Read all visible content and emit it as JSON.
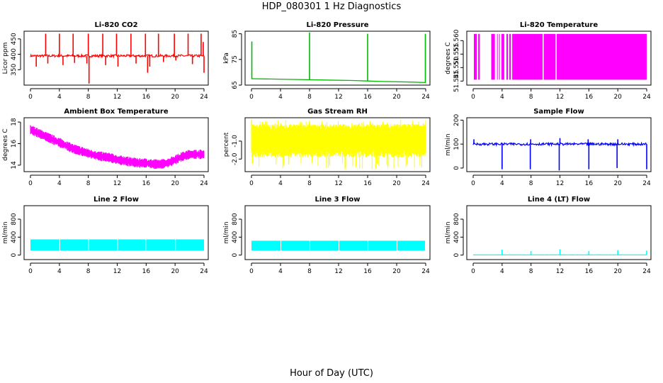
{
  "page": {
    "title": "HDP_080301  1 Hz Diagnostics",
    "xlabel": "Hour of Day (UTC)"
  },
  "chart_data": [
    {
      "type": "line",
      "title": "Li-820 CO2",
      "ylabel": "Licor ppm",
      "color": "#ff0000",
      "xlim": [
        0,
        24
      ],
      "xticks": [
        0,
        4,
        8,
        12,
        16,
        20,
        24
      ],
      "ylim": [
        300,
        475
      ],
      "yticks": [
        350,
        400,
        450
      ],
      "baseline": 395,
      "noise": 4,
      "spikes": [
        {
          "x": 0.8,
          "v": 360
        },
        {
          "x": 2.1,
          "v": 467
        },
        {
          "x": 2.4,
          "v": 370
        },
        {
          "x": 4.0,
          "v": 467
        },
        {
          "x": 4.5,
          "v": 365
        },
        {
          "x": 5.9,
          "v": 467
        },
        {
          "x": 6.1,
          "v": 372
        },
        {
          "x": 7.8,
          "v": 370
        },
        {
          "x": 8.0,
          "v": 467
        },
        {
          "x": 8.1,
          "v": 305
        },
        {
          "x": 10.0,
          "v": 467
        },
        {
          "x": 10.4,
          "v": 365
        },
        {
          "x": 11.9,
          "v": 467
        },
        {
          "x": 12.1,
          "v": 360
        },
        {
          "x": 13.9,
          "v": 467
        },
        {
          "x": 14.6,
          "v": 370
        },
        {
          "x": 15.9,
          "v": 467
        },
        {
          "x": 16.2,
          "v": 340
        },
        {
          "x": 16.5,
          "v": 360
        },
        {
          "x": 17.7,
          "v": 467
        },
        {
          "x": 18.4,
          "v": 375
        },
        {
          "x": 19.9,
          "v": 467
        },
        {
          "x": 20.1,
          "v": 380
        },
        {
          "x": 21.8,
          "v": 467
        },
        {
          "x": 22.4,
          "v": 368
        },
        {
          "x": 23.6,
          "v": 467
        },
        {
          "x": 23.9,
          "v": 440
        },
        {
          "x": 24.0,
          "v": 340
        }
      ]
    },
    {
      "type": "line",
      "title": "Li-820 Pressure",
      "ylabel": "kPa",
      "color": "#00bb00",
      "xlim": [
        0,
        24
      ],
      "xticks": [
        0,
        4,
        8,
        12,
        16,
        20,
        24
      ],
      "ylim": [
        65,
        86
      ],
      "yticks": [
        65,
        75,
        85
      ],
      "series": [
        {
          "x": [
            0,
            2,
            6,
            10,
            14,
            18,
            22,
            24
          ],
          "y": [
            67.5,
            67.4,
            67.2,
            67.0,
            66.8,
            66.4,
            66.2,
            66.0
          ]
        }
      ],
      "spikes": [
        {
          "x": 0.05,
          "v": 82
        },
        {
          "x": 8.0,
          "v": 85.5
        },
        {
          "x": 16.0,
          "v": 85
        },
        {
          "x": 23.95,
          "v": 85
        }
      ]
    },
    {
      "type": "area",
      "title": "Li-820 Temperature",
      "ylabel": "degrees C",
      "color": "#ff00ff",
      "xlim": [
        0,
        24
      ],
      "xticks": [
        0,
        4,
        8,
        12,
        16,
        20,
        24
      ],
      "ylim": [
        51.5435,
        51.5635
      ],
      "yticks": [
        51.545,
        51.55,
        51.555,
        51.56
      ],
      "ytick_labels": [
        "51.545",
        "51.550",
        "51.555",
        "51.560"
      ],
      "low": 51.5455,
      "high": 51.5625,
      "filled_ranges": [
        [
          0.1,
          0.5
        ],
        [
          0.7,
          0.9
        ],
        [
          2.5,
          3.0
        ],
        [
          3.3,
          3.4
        ],
        [
          3.6,
          3.7
        ],
        [
          3.9,
          4.3
        ],
        [
          4.6,
          4.8
        ],
        [
          5.0,
          5.2
        ],
        [
          5.4,
          9.6
        ],
        [
          9.75,
          11.4
        ],
        [
          11.55,
          24.0
        ]
      ]
    },
    {
      "type": "line",
      "title": "Ambient Box Temperature",
      "ylabel": "degrees C",
      "color": "#ff00ff",
      "xlim": [
        0,
        24
      ],
      "xticks": [
        0,
        4,
        8,
        12,
        16,
        20,
        24
      ],
      "ylim": [
        13.4,
        18.4
      ],
      "yticks": [
        14,
        16,
        18
      ],
      "series": [
        {
          "x": [
            0,
            1,
            2,
            3,
            4,
            5,
            6,
            7,
            8,
            9,
            10,
            11,
            12,
            13,
            14,
            15,
            16,
            17,
            18,
            19,
            20,
            21,
            22,
            23,
            24
          ],
          "y": [
            17.3,
            17.0,
            16.7,
            16.4,
            16.1,
            15.8,
            15.5,
            15.3,
            15.1,
            14.9,
            14.8,
            14.7,
            14.5,
            14.4,
            14.3,
            14.2,
            14.2,
            14.1,
            14.1,
            14.2,
            14.5,
            14.8,
            15.0,
            15.0,
            15.0
          ]
        }
      ],
      "band_halfwidth": 0.45
    },
    {
      "type": "line",
      "title": "Gas Stream RH",
      "ylabel": "percent",
      "color": "#ffff00",
      "xlim": [
        0,
        24
      ],
      "xticks": [
        0,
        4,
        8,
        12,
        16,
        20,
        24
      ],
      "ylim": [
        -2.7,
        0.3
      ],
      "yticks": [
        -2.0,
        -1.0
      ],
      "ytick_labels": [
        "-2.0",
        "-1.0"
      ],
      "center": -1.1,
      "band_low": -1.7,
      "band_high": -0.2,
      "extreme_low": -2.6,
      "extreme_high": 0.2
    },
    {
      "type": "line",
      "title": "Sample Flow",
      "ylabel": "ml/min",
      "color": "#0000ff",
      "xlim": [
        0,
        24
      ],
      "xticks": [
        0,
        4,
        8,
        12,
        16,
        20,
        24
      ],
      "ylim": [
        -15,
        210
      ],
      "yticks": [
        0,
        100,
        200
      ],
      "baseline": 100,
      "noise": 5,
      "spikes": [
        {
          "x": 0.1,
          "v": 120
        },
        {
          "x": 4.0,
          "v": -5
        },
        {
          "x": 7.9,
          "v": -5
        },
        {
          "x": 7.95,
          "v": 120
        },
        {
          "x": 11.9,
          "v": -10
        },
        {
          "x": 12.0,
          "v": 125
        },
        {
          "x": 16.0,
          "v": -5
        },
        {
          "x": 15.9,
          "v": 120
        },
        {
          "x": 19.9,
          "v": 0
        },
        {
          "x": 20.0,
          "v": 120
        },
        {
          "x": 24.0,
          "v": -5
        }
      ]
    },
    {
      "type": "area",
      "title": "Line 2 Flow",
      "ylabel": "ml/min",
      "color": "#00ffff",
      "xlim": [
        0,
        24
      ],
      "xticks": [
        0,
        4,
        8,
        12,
        16,
        20,
        24
      ],
      "ylim": [
        -100,
        1100
      ],
      "yticks": [
        0,
        400,
        800
      ],
      "low": 100,
      "high": 350,
      "filled_ranges": [
        [
          0,
          4.0
        ],
        [
          4.1,
          8.0
        ],
        [
          8.1,
          12.0
        ],
        [
          12.1,
          15.9
        ],
        [
          16.0,
          20.0
        ],
        [
          20.1,
          24.0
        ]
      ]
    },
    {
      "type": "area",
      "title": "Line 3 Flow",
      "ylabel": "ml/min",
      "color": "#00ffff",
      "xlim": [
        0,
        24
      ],
      "xticks": [
        0,
        4,
        8,
        12,
        16,
        20,
        24
      ],
      "ylim": [
        -100,
        1100
      ],
      "yticks": [
        0,
        400,
        800
      ],
      "low": 100,
      "high": 320,
      "filled_ranges": [
        [
          0,
          4.0
        ],
        [
          4.1,
          8.0
        ],
        [
          8.1,
          12.0
        ],
        [
          12.1,
          16.0
        ],
        [
          16.1,
          20.0
        ],
        [
          20.1,
          23.9
        ]
      ]
    },
    {
      "type": "line",
      "title": "Line 4 (LT) Flow",
      "ylabel": "ml/min",
      "color": "#00ffff",
      "xlim": [
        0,
        24
      ],
      "xticks": [
        0,
        4,
        8,
        12,
        16,
        20,
        24
      ],
      "ylim": [
        -100,
        1100
      ],
      "yticks": [
        0,
        400,
        800
      ],
      "baseline": 5,
      "noise": 2,
      "spikes": [
        {
          "x": 4.0,
          "v": 120
        },
        {
          "x": 8.0,
          "v": 90
        },
        {
          "x": 12.0,
          "v": 130
        },
        {
          "x": 16.0,
          "v": 90
        },
        {
          "x": 20.0,
          "v": 110
        },
        {
          "x": 24.0,
          "v": 100
        }
      ]
    }
  ]
}
